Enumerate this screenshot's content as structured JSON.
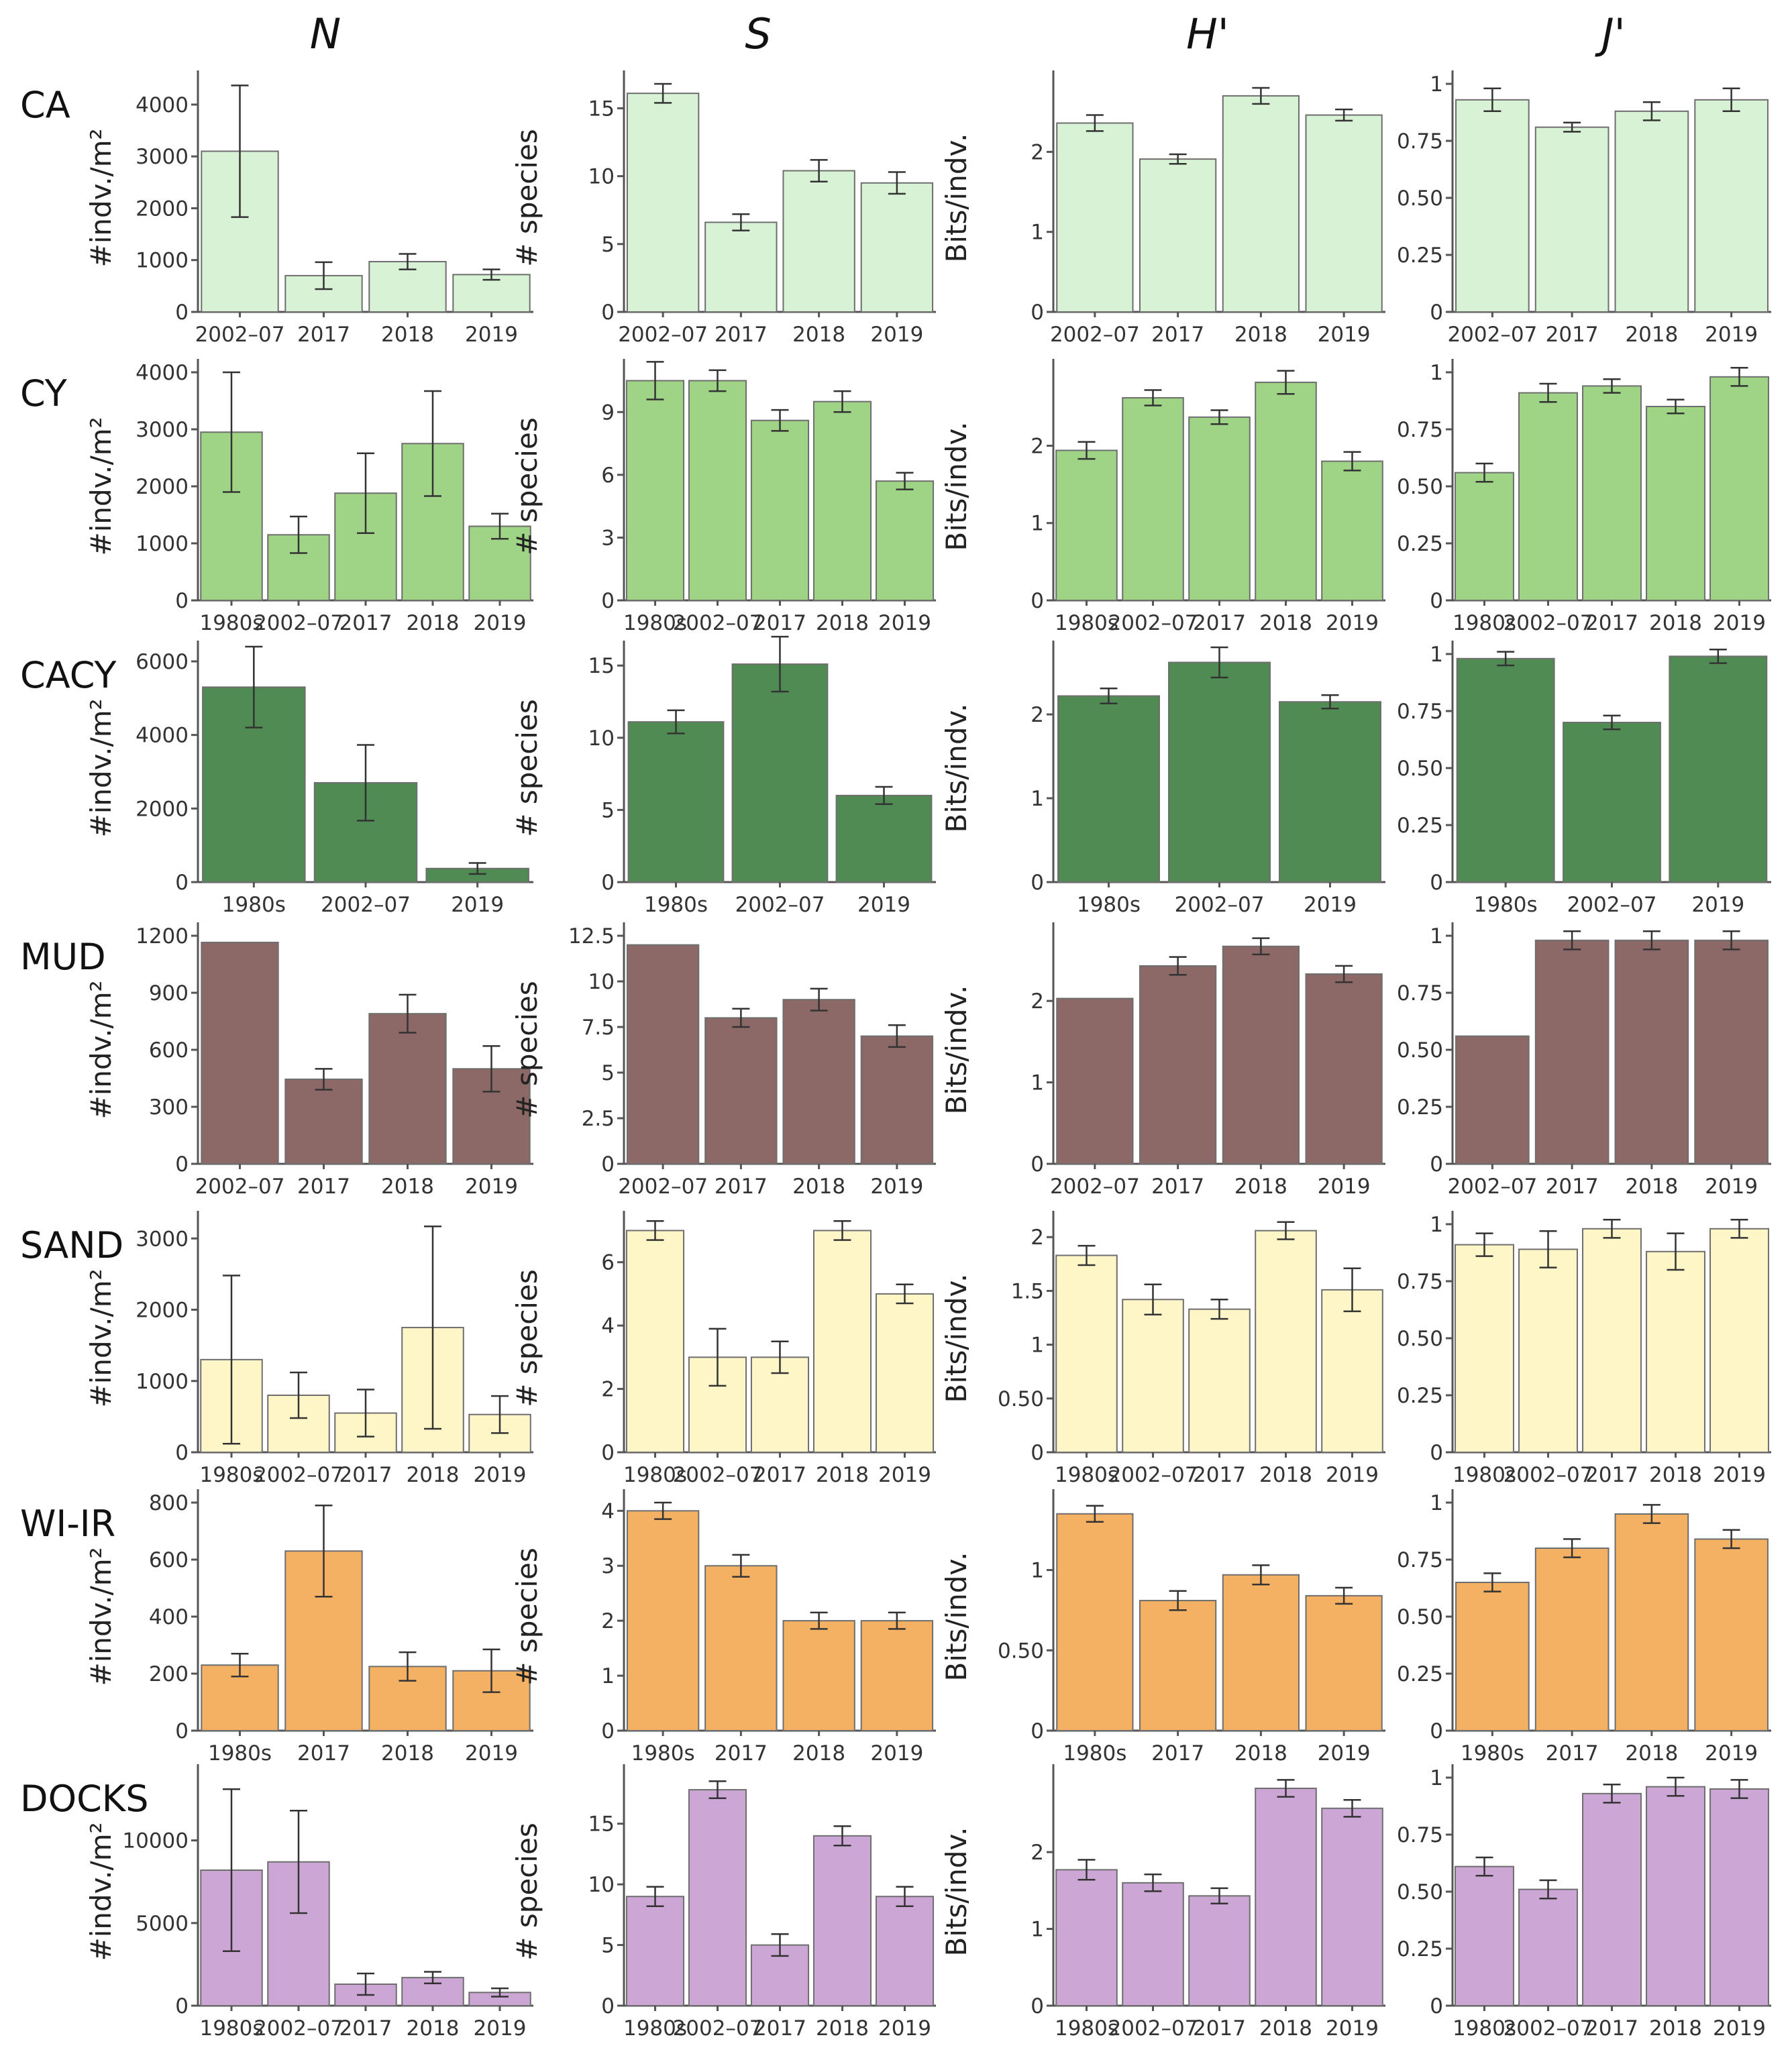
{
  "columns": [
    {
      "key": "N",
      "title": "N"
    },
    {
      "key": "S",
      "title": "S"
    },
    {
      "key": "H",
      "title": "H'"
    },
    {
      "key": "J",
      "title": "J'"
    }
  ],
  "y_labels": {
    "N": "#indv./m²",
    "S": "# species",
    "H": "Bits/indv.",
    "J": ""
  },
  "y_ticks": {
    "CA": {
      "N": [
        0,
        1000,
        2000,
        3000,
        4000
      ],
      "S": [
        0,
        5,
        10,
        15
      ],
      "H": [
        0,
        1,
        2
      ],
      "J": [
        0,
        0.25,
        0.5,
        0.75,
        1
      ]
    },
    "CY": {
      "N": [
        0,
        1000,
        2000,
        3000,
        4000
      ],
      "S": [
        0,
        3,
        6,
        9
      ],
      "H": [
        0,
        1,
        2
      ],
      "J": [
        0,
        0.25,
        0.5,
        0.75,
        1
      ]
    },
    "CACY": {
      "N": [
        0,
        2000,
        4000,
        6000
      ],
      "S": [
        0,
        5,
        10,
        15
      ],
      "H": [
        0,
        1,
        2
      ],
      "J": [
        0,
        0.25,
        0.5,
        0.75,
        1
      ]
    },
    "MUD": {
      "N": [
        0,
        300,
        600,
        900,
        1200
      ],
      "S": [
        0,
        2.5,
        5,
        7.5,
        10,
        12.5
      ],
      "H": [
        0,
        1,
        2
      ],
      "J": [
        0,
        0.25,
        0.5,
        0.75,
        1
      ]
    },
    "SAND": {
      "N": [
        0,
        1000,
        2000,
        3000
      ],
      "S": [
        0,
        2,
        4,
        6
      ],
      "H": [
        0,
        0.5,
        1,
        1.5,
        2
      ],
      "J": [
        0,
        0.25,
        0.5,
        0.75,
        1
      ]
    },
    "WI-IR": {
      "N": [
        0,
        200,
        400,
        600,
        800
      ],
      "S": [
        0,
        1,
        2,
        3,
        4
      ],
      "H": [
        0,
        0.5,
        1
      ],
      "J": [
        0,
        0.25,
        0.5,
        0.75,
        1
      ]
    },
    "DOCKS": {
      "N": [
        0,
        5000,
        10000
      ],
      "S": [
        0,
        5,
        10,
        15
      ],
      "H": [
        0,
        1,
        2
      ],
      "J": [
        0,
        0.25,
        0.5,
        0.75,
        1
      ]
    }
  },
  "tick_labels": {
    "0": "0",
    "0.25": "0.25",
    "0.5": "0.50",
    "0.75": "0.75",
    "1": "1",
    "1.5": "1.5",
    "2.5": "2.5",
    "7.5": "7.5",
    "12.5": "12.5"
  },
  "chart_data": [
    {
      "type": "bar",
      "row": "CA",
      "color": "#d8f2d6",
      "categories": [
        "2002–07",
        "2017",
        "2018",
        "2019"
      ],
      "series": [
        {
          "metric": "N",
          "ylim": [
            0,
            4400
          ],
          "values": [
            3100,
            700,
            970,
            720
          ],
          "errors": [
            1270,
            260,
            150,
            100
          ]
        },
        {
          "metric": "S",
          "ylim": [
            0,
            16.8
          ],
          "values": [
            16.1,
            6.6,
            10.4,
            9.5
          ],
          "errors": [
            0.7,
            0.6,
            0.8,
            0.8
          ]
        },
        {
          "metric": "H",
          "ylim": [
            0,
            2.85
          ],
          "values": [
            2.36,
            1.91,
            2.7,
            2.46
          ],
          "errors": [
            0.1,
            0.06,
            0.1,
            0.07
          ]
        },
        {
          "metric": "J",
          "ylim": [
            0,
            1
          ],
          "values": [
            0.93,
            0.81,
            0.88,
            0.93
          ],
          "errors": [
            0.05,
            0.02,
            0.04,
            0.05
          ]
        }
      ]
    },
    {
      "type": "bar",
      "row": "CY",
      "color": "#9fd486",
      "categories": [
        "1980s",
        "2002–07",
        "2017",
        "2018",
        "2019"
      ],
      "series": [
        {
          "metric": "N",
          "ylim": [
            0,
            4000
          ],
          "values": [
            2950,
            1150,
            1880,
            2750,
            1300
          ],
          "errors": [
            1050,
            320,
            700,
            920,
            220
          ]
        },
        {
          "metric": "S",
          "ylim": [
            0,
            10.9
          ],
          "values": [
            10.5,
            10.5,
            8.6,
            9.5,
            5.7
          ],
          "errors": [
            0.9,
            0.5,
            0.5,
            0.5,
            0.4
          ]
        },
        {
          "metric": "H",
          "ylim": [
            0,
            2.95
          ],
          "values": [
            1.94,
            2.62,
            2.37,
            2.82,
            1.8
          ],
          "errors": [
            0.11,
            0.1,
            0.09,
            0.15,
            0.12
          ]
        },
        {
          "metric": "J",
          "ylim": [
            0,
            1
          ],
          "values": [
            0.56,
            0.91,
            0.94,
            0.85,
            0.98
          ],
          "errors": [
            0.04,
            0.04,
            0.03,
            0.03,
            0.04
          ]
        }
      ]
    },
    {
      "type": "bar",
      "row": "CACY",
      "color": "#4f8b52",
      "categories": [
        "1980s",
        "2002–07",
        "2019"
      ],
      "series": [
        {
          "metric": "N",
          "ylim": [
            0,
            6200
          ],
          "values": [
            5300,
            2700,
            370
          ],
          "errors": [
            1100,
            1030,
            150
          ]
        },
        {
          "metric": "S",
          "ylim": [
            0,
            15.8
          ],
          "values": [
            11.1,
            15.1,
            6.0
          ],
          "errors": [
            0.8,
            1.9,
            0.6
          ]
        },
        {
          "metric": "H",
          "ylim": [
            0,
            2.72
          ],
          "values": [
            2.22,
            2.62,
            2.15
          ],
          "errors": [
            0.09,
            0.18,
            0.08
          ]
        },
        {
          "metric": "J",
          "ylim": [
            0,
            1
          ],
          "values": [
            0.98,
            0.7,
            0.99
          ],
          "errors": [
            0.03,
            0.03,
            0.03
          ]
        }
      ]
    },
    {
      "type": "bar",
      "row": "MUD",
      "color": "#8c6866",
      "categories": [
        "2002–07",
        "2017",
        "2018",
        "2019"
      ],
      "series": [
        {
          "metric": "N",
          "ylim": [
            0,
            1200
          ],
          "values": [
            1165,
            445,
            790,
            500
          ],
          "errors": [
            0,
            55,
            100,
            120
          ]
        },
        {
          "metric": "S",
          "ylim": [
            0,
            12.5
          ],
          "values": [
            12.0,
            8.0,
            9.0,
            7.0
          ],
          "errors": [
            0,
            0.5,
            0.6,
            0.6
          ]
        },
        {
          "metric": "H",
          "ylim": [
            0,
            2.8
          ],
          "values": [
            2.03,
            2.43,
            2.67,
            2.33
          ],
          "errors": [
            0,
            0.11,
            0.1,
            0.1
          ]
        },
        {
          "metric": "J",
          "ylim": [
            0,
            1
          ],
          "values": [
            0.56,
            0.98,
            0.98,
            0.98
          ],
          "errors": [
            0,
            0.04,
            0.04,
            0.04
          ]
        }
      ]
    },
    {
      "type": "bar",
      "row": "SAND",
      "color": "#fff6c7",
      "categories": [
        "1980s",
        "2002–07",
        "2017",
        "2018",
        "2019"
      ],
      "series": [
        {
          "metric": "N",
          "ylim": [
            0,
            3200
          ],
          "values": [
            1300,
            800,
            550,
            1750,
            530
          ],
          "errors": [
            1180,
            320,
            330,
            1420,
            260
          ]
        },
        {
          "metric": "S",
          "ylim": [
            0,
            7.2
          ],
          "values": [
            7.0,
            3.0,
            3.0,
            7.0,
            5.0
          ],
          "errors": [
            0.3,
            0.9,
            0.5,
            0.3,
            0.3
          ]
        },
        {
          "metric": "H",
          "ylim": [
            0,
            2.12
          ],
          "values": [
            1.83,
            1.42,
            1.33,
            2.06,
            1.51
          ],
          "errors": [
            0.09,
            0.14,
            0.09,
            0.08,
            0.2
          ]
        },
        {
          "metric": "J",
          "ylim": [
            0,
            1
          ],
          "values": [
            0.91,
            0.89,
            0.98,
            0.88,
            0.98
          ],
          "errors": [
            0.05,
            0.08,
            0.04,
            0.08,
            0.04
          ]
        }
      ]
    },
    {
      "type": "bar",
      "row": "WI-IR",
      "color": "#f4b163",
      "categories": [
        "1980s",
        "2017",
        "2018",
        "2019"
      ],
      "series": [
        {
          "metric": "N",
          "ylim": [
            0,
            800
          ],
          "values": [
            230,
            630,
            225,
            210
          ],
          "errors": [
            40,
            160,
            50,
            75
          ]
        },
        {
          "metric": "S",
          "ylim": [
            0,
            4.15
          ],
          "values": [
            4.0,
            3.0,
            2.0,
            2.0
          ],
          "errors": [
            0.15,
            0.2,
            0.15,
            0.15
          ]
        },
        {
          "metric": "H",
          "ylim": [
            0,
            1.42
          ],
          "values": [
            1.35,
            0.81,
            0.97,
            0.84
          ],
          "errors": [
            0.05,
            0.06,
            0.06,
            0.05
          ]
        },
        {
          "metric": "J",
          "ylim": [
            0,
            1
          ],
          "values": [
            0.65,
            0.8,
            0.95,
            0.84
          ],
          "errors": [
            0.04,
            0.04,
            0.04,
            0.04
          ]
        }
      ]
    },
    {
      "type": "bar",
      "row": "DOCKS",
      "color": "#cca6d5",
      "categories": [
        "1980s",
        "2002–07",
        "2017",
        "2018",
        "2019"
      ],
      "series": [
        {
          "metric": "N",
          "ylim": [
            0,
            13800
          ],
          "values": [
            8200,
            8700,
            1300,
            1700,
            800
          ],
          "errors": [
            4900,
            3100,
            650,
            350,
            250
          ]
        },
        {
          "metric": "S",
          "ylim": [
            0,
            18.8
          ],
          "values": [
            9.0,
            17.8,
            5.0,
            14.0,
            9.0
          ],
          "errors": [
            0.8,
            0.7,
            0.9,
            0.8,
            0.8
          ]
        },
        {
          "metric": "H",
          "ylim": [
            0,
            2.97
          ],
          "values": [
            1.77,
            1.6,
            1.43,
            2.83,
            2.57
          ],
          "errors": [
            0.13,
            0.11,
            0.1,
            0.11,
            0.11
          ]
        },
        {
          "metric": "J",
          "ylim": [
            0,
            1
          ],
          "values": [
            0.61,
            0.51,
            0.93,
            0.96,
            0.95
          ],
          "errors": [
            0.04,
            0.04,
            0.04,
            0.04,
            0.04
          ]
        }
      ]
    }
  ]
}
